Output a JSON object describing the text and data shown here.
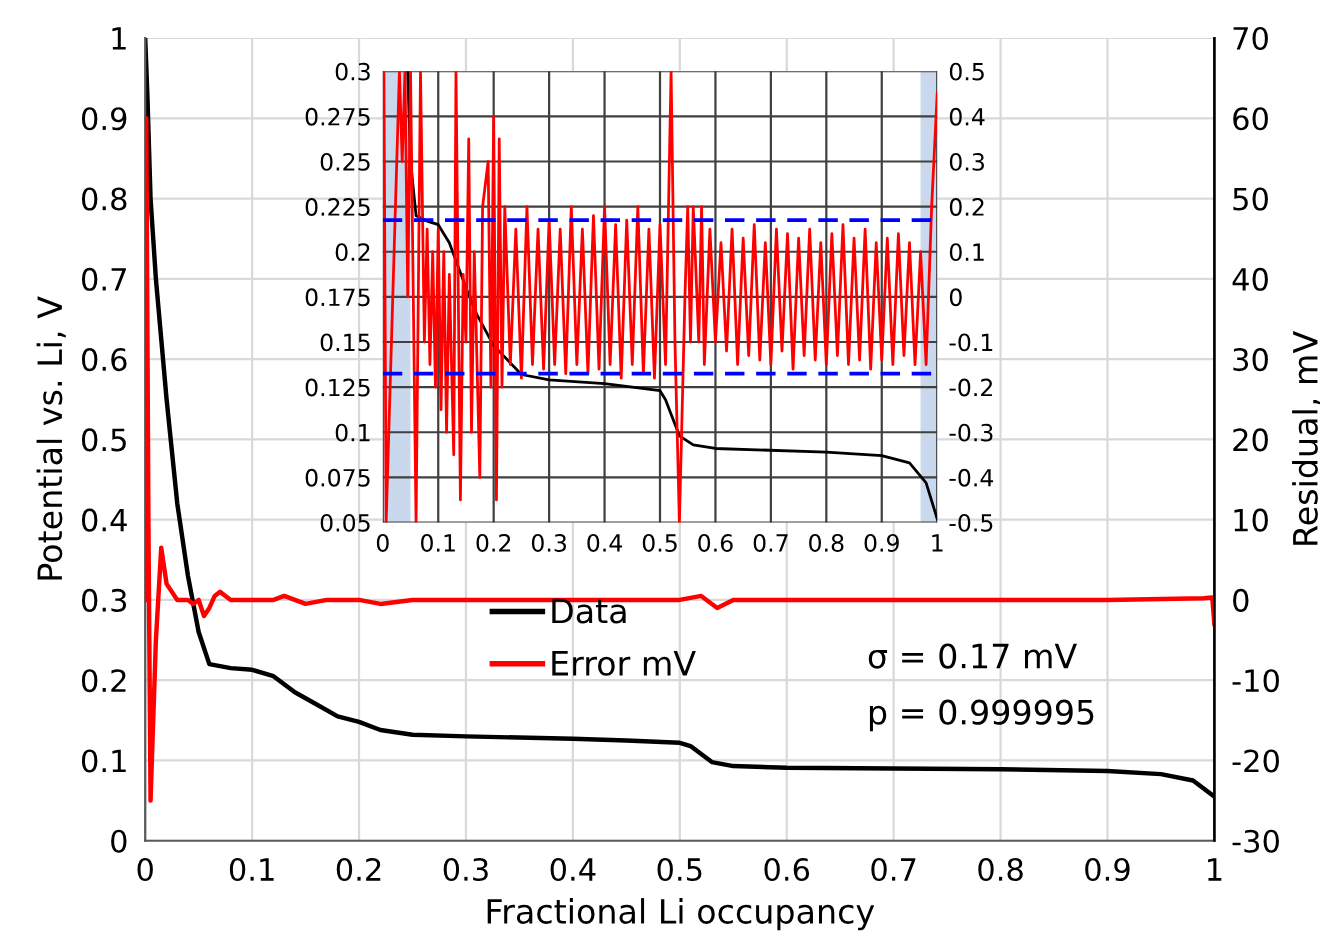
{
  "chart_data": [
    {
      "type": "line",
      "xlabel": "Fractional Li occupancy",
      "ylabel": "Potential vs. Li, V",
      "y2label": "Residual, mV",
      "xlim": [
        0,
        1
      ],
      "xticks": [
        0,
        0.1,
        0.2,
        0.3,
        0.4,
        0.5,
        0.6,
        0.7,
        0.8,
        0.9,
        1
      ],
      "ylim": [
        0,
        1
      ],
      "yticks": [
        0,
        0.1,
        0.2,
        0.3,
        0.4,
        0.5,
        0.6,
        0.7,
        0.8,
        0.9,
        1
      ],
      "y2lim": [
        -30,
        70
      ],
      "y2ticks": [
        -30,
        -20,
        -10,
        0,
        10,
        20,
        30,
        40,
        50,
        60,
        70
      ],
      "grid": true,
      "legend": "bottom",
      "annotations": [
        "σ = 0.17 mV",
        "p = 0.999995"
      ],
      "series": [
        {
          "name": "Data",
          "color": "#000000",
          "x": [
            0,
            0.002,
            0.005,
            0.01,
            0.02,
            0.03,
            0.04,
            0.05,
            0.06,
            0.08,
            0.1,
            0.12,
            0.14,
            0.16,
            0.18,
            0.2,
            0.22,
            0.25,
            0.3,
            0.4,
            0.45,
            0.5,
            0.51,
            0.52,
            0.53,
            0.55,
            0.6,
            0.7,
            0.8,
            0.9,
            0.95,
            0.98,
            1.0
          ],
          "values": [
            1.0,
            0.93,
            0.8,
            0.7,
            0.55,
            0.42,
            0.33,
            0.26,
            0.22,
            0.215,
            0.213,
            0.205,
            0.185,
            0.17,
            0.155,
            0.148,
            0.138,
            0.132,
            0.13,
            0.127,
            0.125,
            0.122,
            0.118,
            0.108,
            0.098,
            0.093,
            0.091,
            0.09,
            0.089,
            0.087,
            0.083,
            0.075,
            0.055
          ]
        },
        {
          "name": "Error mV",
          "color": "#ff0000",
          "axis": "y2",
          "x": [
            0,
            0.001,
            0.003,
            0.005,
            0.01,
            0.015,
            0.02,
            0.03,
            0.04,
            0.045,
            0.05,
            0.055,
            0.06,
            0.065,
            0.07,
            0.08,
            0.1,
            0.12,
            0.13,
            0.14,
            0.15,
            0.17,
            0.2,
            0.22,
            0.25,
            0.3,
            0.4,
            0.5,
            0.52,
            0.53,
            0.535,
            0.55,
            0.6,
            0.7,
            0.8,
            0.9,
            0.99,
            0.998,
            1.0
          ],
          "values": [
            0,
            60,
            10,
            -25,
            -5,
            6.5,
            2,
            0,
            0,
            -0.5,
            0,
            -2,
            -1,
            0.5,
            1,
            0,
            0,
            0,
            0.5,
            0,
            -0.5,
            0,
            0,
            -0.5,
            0,
            0,
            0,
            0,
            0.5,
            -0.5,
            -1,
            0,
            0,
            0,
            0,
            0,
            0.2,
            0.3,
            -3
          ]
        }
      ]
    },
    {
      "type": "line",
      "xlim": [
        0,
        1
      ],
      "xticks": [
        0,
        0.1,
        0.2,
        0.3,
        0.4,
        0.5,
        0.6,
        0.7,
        0.8,
        0.9,
        1
      ],
      "ylim": [
        0.05,
        0.3
      ],
      "yticks": [
        0.05,
        0.075,
        0.1,
        0.125,
        0.15,
        0.175,
        0.2,
        0.225,
        0.25,
        0.275,
        0.3
      ],
      "y2lim": [
        -0.5,
        0.5
      ],
      "y2ticks": [
        -0.5,
        -0.4,
        -0.3,
        -0.2,
        -0.1,
        0,
        0.1,
        0.2,
        0.3,
        0.4,
        0.5
      ],
      "grid": true,
      "bands": [
        {
          "axis": "x",
          "from": 0,
          "to": 0.05,
          "color": "#b4c7e7"
        },
        {
          "axis": "x",
          "from": 0.97,
          "to": 1,
          "color": "#b4c7e7"
        }
      ],
      "ref_lines": [
        {
          "axis": "y2",
          "value": 0.17,
          "color": "#0000ff",
          "line_style": "dashed"
        },
        {
          "axis": "y2",
          "value": -0.17,
          "color": "#0000ff",
          "line_style": "dashed"
        }
      ],
      "series": [
        {
          "color": "#000000",
          "x": [
            0.045,
            0.05,
            0.06,
            0.08,
            0.1,
            0.12,
            0.15,
            0.17,
            0.2,
            0.25,
            0.3,
            0.4,
            0.5,
            0.51,
            0.52,
            0.535,
            0.56,
            0.6,
            0.8,
            0.9,
            0.95,
            0.98,
            1.0
          ],
          "values": [
            0.3,
            0.25,
            0.22,
            0.217,
            0.215,
            0.205,
            0.18,
            0.165,
            0.148,
            0.132,
            0.129,
            0.127,
            0.123,
            0.118,
            0.11,
            0.098,
            0.093,
            0.091,
            0.089,
            0.087,
            0.083,
            0.072,
            0.052
          ]
        },
        {
          "color": "#ff0000",
          "axis": "y2",
          "x": [
            0.002,
            0.006,
            0.03,
            0.035,
            0.04,
            0.045,
            0.05,
            0.06,
            0.068,
            0.075,
            0.08,
            0.085,
            0.09,
            0.095,
            0.1,
            0.105,
            0.11,
            0.115,
            0.12,
            0.128,
            0.132,
            0.14,
            0.145,
            0.15,
            0.155,
            0.16,
            0.165,
            0.175,
            0.18,
            0.19,
            0.195,
            0.2,
            0.205,
            0.21,
            0.215,
            0.22,
            0.23,
            0.24,
            0.25,
            0.26,
            0.27,
            0.28,
            0.29,
            0.3,
            0.31,
            0.32,
            0.33,
            0.34,
            0.35,
            0.36,
            0.37,
            0.38,
            0.39,
            0.4,
            0.41,
            0.42,
            0.43,
            0.44,
            0.45,
            0.46,
            0.47,
            0.48,
            0.49,
            0.5,
            0.51,
            0.52,
            0.527,
            0.535,
            0.545,
            0.55,
            0.555,
            0.56,
            0.57,
            0.575,
            0.58,
            0.59,
            0.6,
            0.61,
            0.62,
            0.63,
            0.64,
            0.65,
            0.66,
            0.67,
            0.68,
            0.69,
            0.7,
            0.71,
            0.72,
            0.73,
            0.74,
            0.75,
            0.76,
            0.77,
            0.78,
            0.79,
            0.8,
            0.81,
            0.82,
            0.83,
            0.84,
            0.85,
            0.86,
            0.87,
            0.88,
            0.89,
            0.9,
            0.91,
            0.92,
            0.93,
            0.94,
            0.95,
            0.96,
            0.97,
            0.98,
            0.99,
            1.0
          ],
          "values": [
            0.5,
            -0.5,
            0.5,
            0.3,
            0.5,
            0.0,
            0.5,
            -0.5,
            0.5,
            -0.1,
            0.15,
            -0.15,
            0.1,
            -0.2,
            0.15,
            -0.25,
            0.1,
            -0.3,
            0.05,
            -0.35,
            0.5,
            -0.45,
            0.05,
            -0.1,
            0.35,
            -0.3,
            0.1,
            -0.4,
            0.2,
            0.3,
            -0.2,
            0.4,
            -0.45,
            0.35,
            -0.2,
            0.2,
            -0.15,
            0.15,
            -0.18,
            0.2,
            -0.15,
            0.15,
            -0.16,
            0.17,
            -0.15,
            0.15,
            -0.17,
            0.2,
            -0.15,
            0.15,
            -0.17,
            0.18,
            -0.16,
            0.2,
            -0.15,
            0.16,
            -0.18,
            0.17,
            -0.15,
            0.2,
            -0.17,
            0.15,
            -0.18,
            0.16,
            -0.15,
            0.5,
            -0.1,
            -0.5,
            0.0,
            0.2,
            -0.1,
            0.2,
            -0.1,
            0.2,
            -0.15,
            0.15,
            -0.1,
            0.12,
            -0.12,
            0.15,
            -0.15,
            0.13,
            -0.13,
            0.16,
            -0.14,
            0.12,
            -0.15,
            0.15,
            -0.12,
            0.14,
            -0.16,
            0.13,
            -0.13,
            0.15,
            -0.14,
            0.12,
            -0.15,
            0.14,
            -0.13,
            0.16,
            -0.15,
            0.13,
            -0.14,
            0.15,
            -0.16,
            0.12,
            -0.14,
            0.13,
            -0.15,
            0.14,
            -0.13,
            0.12,
            -0.15,
            0.1,
            -0.15,
            0.2,
            0.45
          ]
        }
      ]
    }
  ]
}
